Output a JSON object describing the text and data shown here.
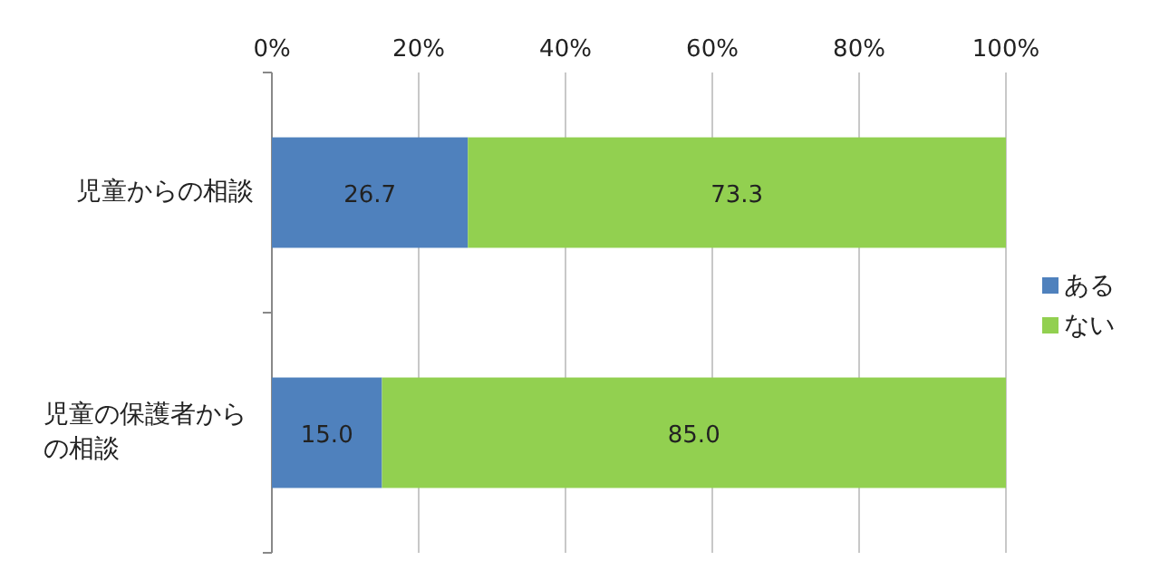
{
  "chart_data": {
    "type": "bar",
    "orientation": "horizontal",
    "stacked": true,
    "grid": "x",
    "legend": "right",
    "categories": [
      "児童からの相談",
      "児童の保護者からの相談"
    ],
    "series": [
      {
        "name": "ある",
        "color": "#4f81bd",
        "values": [
          26.7,
          15.0
        ],
        "value_labels": [
          "26.7",
          "15.0"
        ]
      },
      {
        "name": "ない",
        "color": "#92d050",
        "values": [
          73.3,
          85.0
        ],
        "value_labels": [
          "73.3",
          "85.0"
        ]
      }
    ],
    "xlim": [
      0,
      100
    ],
    "xticks": [
      {
        "value": 0,
        "label": "0%"
      },
      {
        "value": 20,
        "label": "20%"
      },
      {
        "value": 40,
        "label": "40%"
      },
      {
        "value": 60,
        "label": "60%"
      },
      {
        "value": 80,
        "label": "80%"
      },
      {
        "value": 100,
        "label": "100%"
      }
    ]
  }
}
